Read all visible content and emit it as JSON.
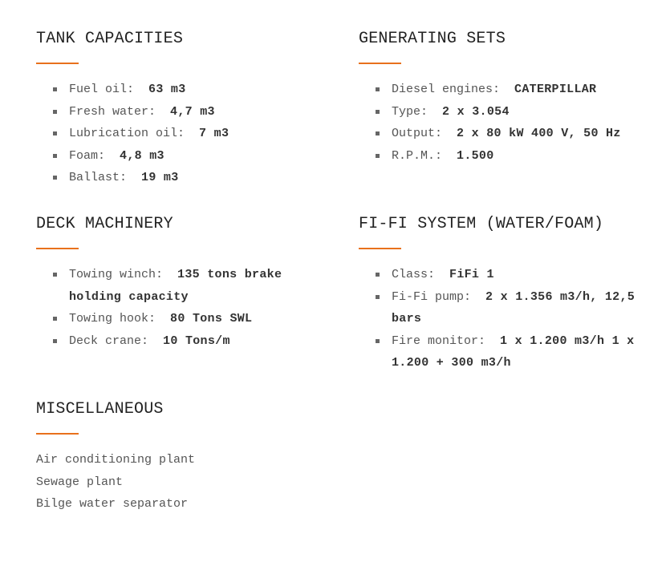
{
  "accent_color": "#e8711c",
  "sections": [
    {
      "title": "TANK CAPACITIES",
      "items": [
        {
          "label": "Fuel oil:",
          "value": "63 m3"
        },
        {
          "label": "Fresh water:",
          "value": "4,7 m3"
        },
        {
          "label": "Lubrication oil:",
          "value": "7 m3"
        },
        {
          "label": "Foam:",
          "value": "4,8 m3"
        },
        {
          "label": "Ballast:",
          "value": "19 m3"
        }
      ]
    },
    {
      "title": "GENERATING SETS",
      "items": [
        {
          "label": "Diesel engines:",
          "value": "CATERPILLAR"
        },
        {
          "label": "Type:",
          "value": "2 x 3.054"
        },
        {
          "label": "Output:",
          "value": "2 x 80 kW 400 V, 50 Hz"
        },
        {
          "label": "R.P.M.:",
          "value": "1.500"
        }
      ]
    },
    {
      "title": "DECK MACHINERY",
      "items": [
        {
          "label": "Towing winch:",
          "value": "135 tons brake holding capacity"
        },
        {
          "label": "Towing hook:",
          "value": "80 Tons SWL"
        },
        {
          "label": "Deck crane:",
          "value": "10 Tons/m"
        }
      ]
    },
    {
      "title": "FI-FI SYSTEM (WATER/FOAM)",
      "items": [
        {
          "label": "Class:",
          "value": "FiFi 1"
        },
        {
          "label": "Fi-Fi pump:",
          "value": "2 x 1.356 m3/h, 12,5 bars"
        },
        {
          "label": "Fire monitor:",
          "value": "1 x 1.200 m3/h 1 x 1.200 + 300 m3/h"
        }
      ]
    },
    {
      "title": "MISCELLANEOUS",
      "lines": [
        "Air conditioning plant",
        "Sewage plant",
        "Bilge water separator"
      ]
    }
  ]
}
